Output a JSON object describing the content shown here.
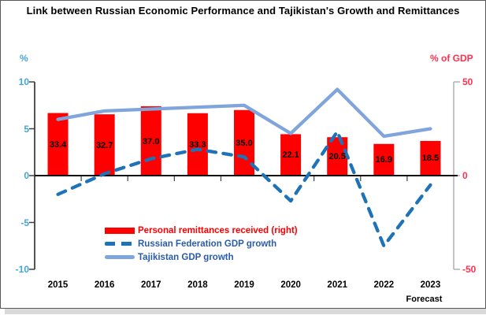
{
  "chart_data": {
    "type": "combo",
    "title": "Link between Russian Economic Performance and Tajikistan's Growth and Remittances",
    "categories": [
      "2015",
      "2016",
      "2017",
      "2018",
      "2019",
      "2020",
      "2021",
      "2022",
      "2023"
    ],
    "forecast_note": {
      "label": "Forecast",
      "category_index": 8
    },
    "series": [
      {
        "name": "Personal remittances received (right)",
        "type": "bar",
        "axis": "right",
        "color": "#fe0000",
        "values": [
          33.4,
          32.7,
          37.0,
          33.3,
          35.0,
          22.1,
          20.5,
          16.9,
          18.5
        ],
        "data_labels": [
          "33.4",
          "32.7",
          "37.0",
          "33.3",
          "35.0",
          "22.1",
          "20.5",
          "16.9",
          "18.5"
        ]
      },
      {
        "name": "Russian Federation GDP growth",
        "type": "line",
        "style": "dashed",
        "axis": "left",
        "color": "#1e73b8",
        "values": [
          -2.0,
          0.2,
          1.8,
          2.8,
          2.0,
          -2.7,
          4.7,
          -7.5,
          -1.0
        ]
      },
      {
        "name": "Tajikistan GDP growth",
        "type": "line",
        "style": "solid",
        "axis": "left",
        "color": "#7fa5dc",
        "values": [
          6.0,
          6.9,
          7.1,
          7.3,
          7.5,
          4.5,
          9.2,
          4.2,
          5.0
        ]
      }
    ],
    "axes": {
      "left": {
        "unit": "%",
        "min": -10,
        "max": 10,
        "ticks": [
          10,
          5,
          0,
          -5,
          -10
        ],
        "color": "#45a6d6"
      },
      "right": {
        "unit": "% of GDP",
        "min": -50,
        "max": 50,
        "ticks": [
          50,
          0,
          -50
        ],
        "color": "#ff3050"
      }
    },
    "grid": false,
    "legend_position": "inside-bottom-left"
  },
  "legend": {
    "items": [
      {
        "label": "Personal remittances received (right)",
        "swatch": "bar",
        "color": "#fe0000",
        "label_color": "#fe0000"
      },
      {
        "label": "Russian Federation GDP growth",
        "swatch": "dashed-line",
        "color": "#1e73b8",
        "label_color": "#2a5caa"
      },
      {
        "label": "Tajikistan GDP growth",
        "swatch": "solid-line",
        "color": "#7fa5dc",
        "label_color": "#2a5caa"
      }
    ]
  }
}
